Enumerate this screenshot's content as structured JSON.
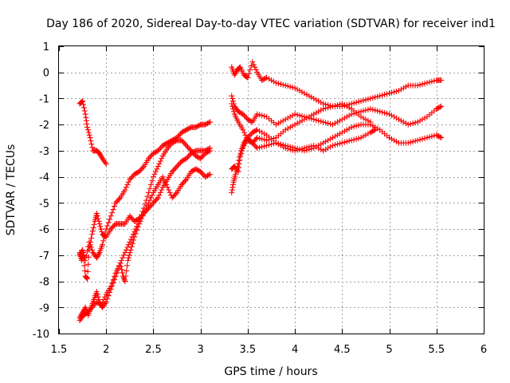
{
  "chart_data": {
    "type": "scatter",
    "title": "Day 186 of 2020, Sidereal Day-to-day VTEC variation (SDTVAR) for receiver ind1",
    "xlabel": "GPS time / hours",
    "ylabel": "SDTVAR / TECUs",
    "xlim": [
      1.5,
      6
    ],
    "ylim": [
      -10,
      1
    ],
    "xticks": [
      1.5,
      2,
      2.5,
      3,
      3.5,
      4,
      4.5,
      5,
      5.5,
      6
    ],
    "xtick_labels": [
      "1.5",
      "2",
      "2.5",
      "3",
      "3.5",
      "4",
      "4.5",
      "5",
      "5.5",
      "6"
    ],
    "yticks": [
      -10,
      -9,
      -8,
      -7,
      -6,
      -5,
      -4,
      -3,
      -2,
      -1,
      0,
      1
    ],
    "ytick_labels": [
      "-10",
      "-9",
      "-8",
      "-7",
      "-6",
      "-5",
      "-4",
      "-3",
      "-2",
      "-1",
      "0",
      "1"
    ],
    "grid": true,
    "marker": "+",
    "color": "#ff0000",
    "series": [
      {
        "name": "s1",
        "points": [
          [
            1.72,
            -1.2
          ],
          [
            1.75,
            -1.1
          ],
          [
            1.78,
            -1.6
          ],
          [
            1.8,
            -2.1
          ],
          [
            1.83,
            -2.5
          ],
          [
            1.86,
            -3.0
          ],
          [
            1.9,
            -3.0
          ],
          [
            1.93,
            -3.1
          ],
          [
            1.96,
            -3.3
          ],
          [
            2.0,
            -3.5
          ]
        ]
      },
      {
        "name": "s2",
        "points": [
          [
            1.72,
            -6.9
          ],
          [
            1.74,
            -7.2
          ],
          [
            1.76,
            -7.0
          ],
          [
            1.78,
            -7.8
          ],
          [
            1.8,
            -7.9
          ],
          [
            1.82,
            -6.8
          ],
          [
            1.85,
            -6.2
          ],
          [
            1.88,
            -5.7
          ],
          [
            1.9,
            -5.4
          ],
          [
            1.93,
            -5.8
          ],
          [
            1.96,
            -6.2
          ],
          [
            2.0,
            -6.3
          ],
          [
            2.05,
            -6.0
          ],
          [
            2.1,
            -5.8
          ],
          [
            2.15,
            -5.8
          ],
          [
            2.2,
            -5.8
          ],
          [
            2.25,
            -5.5
          ],
          [
            2.3,
            -5.7
          ],
          [
            2.35,
            -5.6
          ],
          [
            2.4,
            -5.4
          ],
          [
            2.45,
            -5.2
          ],
          [
            2.5,
            -5.0
          ],
          [
            2.55,
            -4.8
          ],
          [
            2.6,
            -4.4
          ],
          [
            2.65,
            -4.1
          ],
          [
            2.7,
            -3.8
          ],
          [
            2.75,
            -3.6
          ],
          [
            2.8,
            -3.4
          ],
          [
            2.85,
            -3.3
          ],
          [
            2.9,
            -3.1
          ],
          [
            2.95,
            -3.0
          ],
          [
            3.0,
            -3.0
          ],
          [
            3.05,
            -3.0
          ],
          [
            3.1,
            -2.9
          ]
        ]
      },
      {
        "name": "s3",
        "points": [
          [
            1.72,
            -7.0
          ],
          [
            1.75,
            -6.8
          ],
          [
            1.78,
            -7.2
          ],
          [
            1.82,
            -6.5
          ],
          [
            1.86,
            -6.9
          ],
          [
            1.9,
            -7.1
          ],
          [
            1.93,
            -6.9
          ],
          [
            1.96,
            -6.6
          ],
          [
            2.0,
            -6.0
          ],
          [
            2.05,
            -5.5
          ],
          [
            2.1,
            -5.0
          ],
          [
            2.15,
            -4.8
          ],
          [
            2.2,
            -4.5
          ],
          [
            2.25,
            -4.1
          ],
          [
            2.3,
            -3.9
          ],
          [
            2.35,
            -3.8
          ],
          [
            2.4,
            -3.6
          ],
          [
            2.45,
            -3.3
          ],
          [
            2.5,
            -3.1
          ],
          [
            2.55,
            -3.0
          ],
          [
            2.6,
            -2.8
          ],
          [
            2.65,
            -2.7
          ],
          [
            2.7,
            -2.6
          ],
          [
            2.75,
            -2.5
          ],
          [
            2.8,
            -2.3
          ],
          [
            2.85,
            -2.2
          ],
          [
            2.9,
            -2.1
          ],
          [
            2.95,
            -2.1
          ],
          [
            3.0,
            -2.0
          ],
          [
            3.05,
            -2.0
          ],
          [
            3.1,
            -1.9
          ]
        ]
      },
      {
        "name": "s4",
        "points": [
          [
            1.72,
            -9.4
          ],
          [
            1.75,
            -9.2
          ],
          [
            1.78,
            -9.0
          ],
          [
            1.81,
            -9.3
          ],
          [
            1.84,
            -9.0
          ],
          [
            1.87,
            -8.7
          ],
          [
            1.9,
            -8.4
          ],
          [
            1.93,
            -8.8
          ],
          [
            1.96,
            -9.0
          ],
          [
            2.0,
            -8.8
          ],
          [
            2.05,
            -8.3
          ],
          [
            2.1,
            -7.8
          ],
          [
            2.15,
            -7.3
          ],
          [
            2.2,
            -6.9
          ],
          [
            2.25,
            -6.5
          ],
          [
            2.3,
            -6.1
          ],
          [
            2.35,
            -5.7
          ],
          [
            2.4,
            -5.2
          ],
          [
            2.45,
            -4.6
          ],
          [
            2.5,
            -4.0
          ],
          [
            2.55,
            -3.6
          ],
          [
            2.6,
            -3.2
          ],
          [
            2.65,
            -2.9
          ],
          [
            2.7,
            -2.7
          ],
          [
            2.75,
            -2.6
          ],
          [
            2.8,
            -2.6
          ],
          [
            2.85,
            -2.8
          ],
          [
            2.9,
            -3.0
          ],
          [
            2.95,
            -3.2
          ],
          [
            3.0,
            -3.3
          ],
          [
            3.05,
            -3.1
          ],
          [
            3.1,
            -3.0
          ]
        ]
      },
      {
        "name": "s5",
        "points": [
          [
            1.72,
            -9.5
          ],
          [
            1.76,
            -9.3
          ],
          [
            1.8,
            -9.2
          ],
          [
            1.85,
            -9.0
          ],
          [
            1.9,
            -8.8
          ],
          [
            1.95,
            -8.9
          ],
          [
            2.0,
            -8.5
          ],
          [
            2.05,
            -8.2
          ],
          [
            2.1,
            -7.7
          ],
          [
            2.15,
            -7.3
          ],
          [
            2.18,
            -7.8
          ],
          [
            2.2,
            -8.0
          ],
          [
            2.23,
            -7.2
          ],
          [
            2.26,
            -6.8
          ],
          [
            2.3,
            -6.3
          ],
          [
            2.35,
            -5.8
          ],
          [
            2.4,
            -5.4
          ],
          [
            2.45,
            -5.0
          ],
          [
            2.5,
            -4.6
          ],
          [
            2.55,
            -4.3
          ],
          [
            2.6,
            -4.0
          ],
          [
            2.65,
            -4.4
          ],
          [
            2.7,
            -4.8
          ],
          [
            2.75,
            -4.6
          ],
          [
            2.8,
            -4.3
          ],
          [
            2.85,
            -4.1
          ],
          [
            2.9,
            -3.8
          ],
          [
            2.95,
            -3.7
          ],
          [
            3.0,
            -3.8
          ],
          [
            3.05,
            -4.0
          ],
          [
            3.1,
            -3.9
          ]
        ]
      },
      {
        "name": "s6",
        "points": [
          [
            3.33,
            0.2
          ],
          [
            3.36,
            -0.1
          ],
          [
            3.39,
            0.1
          ],
          [
            3.42,
            0.2
          ],
          [
            3.46,
            -0.1
          ],
          [
            3.5,
            -0.2
          ],
          [
            3.55,
            0.4
          ],
          [
            3.6,
            0.0
          ],
          [
            3.65,
            -0.3
          ],
          [
            3.7,
            -0.2
          ],
          [
            3.8,
            -0.4
          ],
          [
            3.9,
            -0.5
          ],
          [
            4.0,
            -0.6
          ],
          [
            4.1,
            -0.8
          ],
          [
            4.2,
            -1.0
          ],
          [
            4.3,
            -1.2
          ],
          [
            4.4,
            -1.3
          ],
          [
            4.5,
            -1.3
          ],
          [
            4.6,
            -1.2
          ],
          [
            4.7,
            -1.1
          ],
          [
            4.8,
            -1.0
          ],
          [
            4.9,
            -0.9
          ],
          [
            5.0,
            -0.8
          ],
          [
            5.1,
            -0.7
          ],
          [
            5.2,
            -0.5
          ],
          [
            5.3,
            -0.5
          ],
          [
            5.4,
            -0.4
          ],
          [
            5.5,
            -0.3
          ],
          [
            5.55,
            -0.3
          ]
        ]
      },
      {
        "name": "s7",
        "points": [
          [
            3.33,
            -0.9
          ],
          [
            3.36,
            -1.3
          ],
          [
            3.4,
            -1.5
          ],
          [
            3.45,
            -1.6
          ],
          [
            3.5,
            -1.8
          ],
          [
            3.55,
            -1.9
          ],
          [
            3.6,
            -1.6
          ],
          [
            3.7,
            -1.7
          ],
          [
            3.8,
            -2.0
          ],
          [
            3.9,
            -1.8
          ],
          [
            4.0,
            -1.6
          ],
          [
            4.1,
            -1.7
          ],
          [
            4.2,
            -1.8
          ],
          [
            4.3,
            -1.9
          ],
          [
            4.4,
            -2.0
          ],
          [
            4.5,
            -1.8
          ],
          [
            4.6,
            -1.6
          ],
          [
            4.7,
            -1.5
          ],
          [
            4.8,
            -1.4
          ],
          [
            4.9,
            -1.5
          ],
          [
            5.0,
            -1.6
          ],
          [
            5.1,
            -1.8
          ],
          [
            5.2,
            -2.0
          ],
          [
            5.3,
            -1.9
          ],
          [
            5.4,
            -1.7
          ],
          [
            5.5,
            -1.4
          ],
          [
            5.55,
            -1.3
          ]
        ]
      },
      {
        "name": "s8",
        "points": [
          [
            3.33,
            -1.2
          ],
          [
            3.36,
            -1.6
          ],
          [
            3.4,
            -1.9
          ],
          [
            3.45,
            -2.2
          ],
          [
            3.5,
            -2.6
          ],
          [
            3.55,
            -2.7
          ],
          [
            3.6,
            -2.5
          ],
          [
            3.7,
            -2.6
          ],
          [
            3.8,
            -2.5
          ],
          [
            3.9,
            -2.2
          ],
          [
            4.0,
            -2.0
          ],
          [
            4.1,
            -1.8
          ],
          [
            4.2,
            -1.6
          ],
          [
            4.3,
            -1.4
          ],
          [
            4.4,
            -1.3
          ],
          [
            4.5,
            -1.2
          ],
          [
            4.6,
            -1.4
          ],
          [
            4.7,
            -1.7
          ],
          [
            4.8,
            -1.9
          ]
        ]
      },
      {
        "name": "s9",
        "points": [
          [
            3.33,
            -3.7
          ],
          [
            3.36,
            -3.6
          ],
          [
            3.4,
            -3.8
          ],
          [
            3.42,
            -3.2
          ],
          [
            3.46,
            -2.8
          ],
          [
            3.5,
            -2.5
          ],
          [
            3.55,
            -2.7
          ],
          [
            3.6,
            -2.9
          ],
          [
            3.7,
            -2.8
          ],
          [
            3.8,
            -2.7
          ],
          [
            3.9,
            -2.8
          ],
          [
            4.0,
            -2.9
          ],
          [
            4.1,
            -3.0
          ],
          [
            4.2,
            -2.9
          ],
          [
            4.3,
            -2.7
          ],
          [
            4.4,
            -2.5
          ],
          [
            4.5,
            -2.3
          ],
          [
            4.6,
            -2.1
          ],
          [
            4.7,
            -2.0
          ],
          [
            4.8,
            -2.0
          ],
          [
            4.9,
            -2.2
          ],
          [
            5.0,
            -2.5
          ],
          [
            5.1,
            -2.7
          ],
          [
            5.2,
            -2.7
          ],
          [
            5.3,
            -2.6
          ],
          [
            5.4,
            -2.5
          ],
          [
            5.5,
            -2.4
          ],
          [
            5.55,
            -2.5
          ]
        ]
      },
      {
        "name": "s10",
        "points": [
          [
            3.33,
            -4.6
          ],
          [
            3.35,
            -4.2
          ],
          [
            3.37,
            -3.9
          ],
          [
            3.4,
            -3.5
          ],
          [
            3.43,
            -3.0
          ],
          [
            3.46,
            -2.7
          ],
          [
            3.5,
            -2.5
          ],
          [
            3.55,
            -2.3
          ],
          [
            3.6,
            -2.2
          ],
          [
            3.7,
            -2.4
          ],
          [
            3.8,
            -2.7
          ],
          [
            3.9,
            -2.9
          ],
          [
            4.0,
            -3.0
          ],
          [
            4.1,
            -2.9
          ],
          [
            4.2,
            -2.8
          ],
          [
            4.3,
            -3.0
          ],
          [
            4.4,
            -2.8
          ],
          [
            4.5,
            -2.7
          ],
          [
            4.6,
            -2.6
          ],
          [
            4.7,
            -2.5
          ],
          [
            4.8,
            -2.3
          ],
          [
            4.85,
            -2.2
          ]
        ]
      }
    ]
  }
}
